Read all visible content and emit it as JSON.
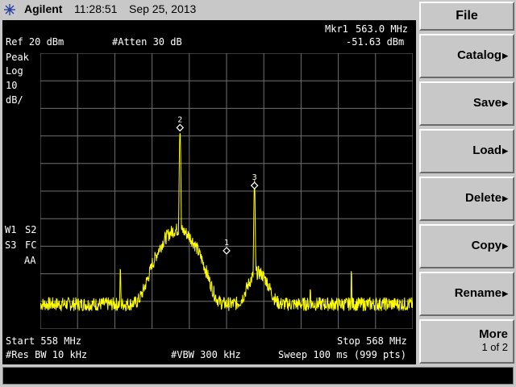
{
  "header": {
    "brand": "Agilent",
    "time": "11:28:51",
    "date": "Sep 25, 2013"
  },
  "screen": {
    "ref_level": "Ref 20 dBm",
    "attenuation": "#Atten 30 dB",
    "marker_name": "Mkr1",
    "marker_freq": "563.0 MHz",
    "marker_amp": "-51.63 dBm",
    "detector": "Peak",
    "scale_type": "Log",
    "scale_value": "10",
    "scale_unit": "dB/",
    "trace_w1": "W1",
    "trace_s2": "S2",
    "trace_s3": "S3",
    "trace_fc": "FC",
    "trace_aa": "AA",
    "start_freq": "Start 558 MHz",
    "stop_freq": "Stop 568 MHz",
    "res_bw": "#Res BW 10 kHz",
    "vbw": "#VBW 300 kHz",
    "sweep": "Sweep 100 ms (999 pts)",
    "trace_color": "#ffff00",
    "grid_color": "#707070"
  },
  "chart_data": {
    "type": "line",
    "x_unit": "MHz",
    "y_unit": "dBm",
    "xlim": [
      558,
      568
    ],
    "ylim": [
      -80,
      20
    ],
    "noise_floor": -71,
    "peaks": [
      {
        "freq": 561.75,
        "amp": -7,
        "label": "2"
      },
      {
        "freq": 563.75,
        "amp": -28,
        "label": "3"
      }
    ],
    "markers": [
      {
        "label": "1",
        "freq": 563.0,
        "amp": -51.63
      },
      {
        "label": "2",
        "freq": 561.75,
        "amp": -7
      },
      {
        "label": "3",
        "freq": 563.75,
        "amp": -28
      }
    ],
    "spurs": [
      {
        "freq": 560.15,
        "amp": -57
      },
      {
        "freq": 561.0,
        "amp": -62
      },
      {
        "freq": 565.25,
        "amp": -65
      },
      {
        "freq": 566.35,
        "amp": -59
      }
    ]
  },
  "softkeys": {
    "title": "File",
    "items": [
      {
        "label": "Catalog",
        "arrow": "▶"
      },
      {
        "label": "Save",
        "arrow": "▶"
      },
      {
        "label": "Load",
        "arrow": "▶"
      },
      {
        "label": "Delete",
        "arrow": "▶"
      },
      {
        "label": "Copy",
        "arrow": "▶"
      },
      {
        "label": "Rename",
        "arrow": "▶"
      }
    ],
    "more_label": "More",
    "more_sub": "1 of 2"
  }
}
